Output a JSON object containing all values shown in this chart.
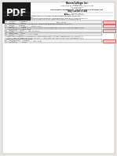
{
  "bg_color": "#e8e6e3",
  "pdf_label": "PDF",
  "pdf_bg": "#1a1a1a",
  "pdf_text_color": "#ffffff",
  "school_name": "Nueva College, Inc.",
  "school_sub1": "Bayan Uni",
  "school_sub2": "Integrated Basic Education Department",
  "school_sub3": "S.Y. 2022-2023",
  "school_sub4": "Science 10",
  "quarter_title": "4th Quarter SCIENCE10 - Asynchronous Seatwork #4",
  "law_title": "Gay-Lussac's Law",
  "page_color": "#ffffff",
  "answer_box_color": "#f5cccc",
  "answer_box_border": "#cc3333"
}
